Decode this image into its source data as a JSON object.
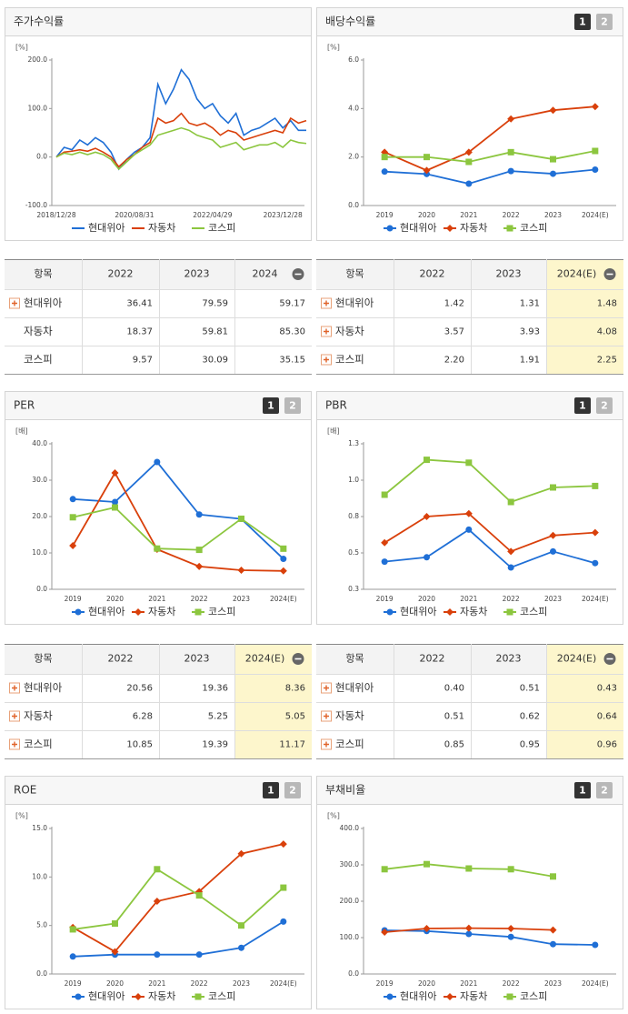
{
  "chart_data": [
    {
      "type": "line",
      "title": "주가수익률",
      "unit": "[%]",
      "categories": [
        "2018/12/28",
        null,
        null,
        null,
        null,
        null,
        null,
        null,
        null,
        null,
        "2020/08/31",
        null,
        null,
        null,
        null,
        null,
        null,
        null,
        null,
        null,
        "2022/04/29",
        null,
        null,
        null,
        null,
        null,
        null,
        null,
        null,
        "2023/12/28",
        null,
        null,
        null
      ],
      "ylim": [
        -100,
        200
      ],
      "yticks": [
        {
          "value": -100,
          "label": "-100.0"
        },
        {
          "value": 0,
          "label": "0.0"
        },
        {
          "value": 100,
          "label": "100.0"
        },
        {
          "value": 200,
          "label": "200.0"
        }
      ],
      "series": [
        {
          "name": "현대위아",
          "color": "#1f6fd6",
          "values": [
            0,
            20,
            15,
            35,
            25,
            40,
            30,
            10,
            -25,
            -5,
            10,
            20,
            40,
            150,
            110,
            140,
            180,
            160,
            120,
            100,
            110,
            85,
            70,
            90,
            45,
            55,
            60,
            70,
            80,
            60,
            75,
            55,
            55
          ]
        },
        {
          "name": "자동차",
          "color": "#d9400b",
          "values": [
            0,
            10,
            12,
            15,
            12,
            18,
            10,
            0,
            -20,
            -5,
            5,
            20,
            30,
            80,
            70,
            75,
            90,
            70,
            65,
            70,
            60,
            45,
            55,
            50,
            35,
            40,
            45,
            50,
            55,
            50,
            80,
            70,
            75
          ]
        },
        {
          "name": "코스피",
          "color": "#8cc63f",
          "values": [
            0,
            8,
            5,
            10,
            5,
            10,
            5,
            -5,
            -25,
            -10,
            5,
            15,
            25,
            45,
            50,
            55,
            60,
            55,
            45,
            40,
            35,
            20,
            25,
            30,
            15,
            20,
            25,
            25,
            30,
            20,
            35,
            30,
            28
          ]
        }
      ]
    },
    {
      "type": "line",
      "title": "배당수익률",
      "unit": "[%]",
      "pager": [
        "1",
        "2"
      ],
      "categories": [
        "2019",
        "2020",
        "2021",
        "2022",
        "2023",
        "2024(E)"
      ],
      "ylim": [
        0,
        6
      ],
      "yticks": [
        {
          "value": 0,
          "label": "0.0"
        },
        {
          "value": 2,
          "label": "2.0"
        },
        {
          "value": 4,
          "label": "4.0"
        },
        {
          "value": 6,
          "label": "6.0"
        }
      ],
      "series": [
        {
          "name": "현대위아",
          "color": "#1f6fd6",
          "marker": "circle",
          "values": [
            1.4,
            1.3,
            0.9,
            1.42,
            1.31,
            1.48
          ]
        },
        {
          "name": "자동차",
          "color": "#d9400b",
          "marker": "diamond",
          "values": [
            2.2,
            1.45,
            2.2,
            3.57,
            3.93,
            4.08
          ]
        },
        {
          "name": "코스피",
          "color": "#8cc63f",
          "marker": "square",
          "values": [
            2.0,
            2.0,
            1.8,
            2.2,
            1.91,
            2.25
          ]
        }
      ]
    },
    {
      "type": "line",
      "title": "PER",
      "unit": "[배]",
      "pager": [
        "1",
        "2"
      ],
      "categories": [
        "2019",
        "2020",
        "2021",
        "2022",
        "2023",
        "2024(E)"
      ],
      "ylim": [
        0,
        40
      ],
      "yticks": [
        {
          "value": 0,
          "label": "0.0"
        },
        {
          "value": 10,
          "label": "10.0"
        },
        {
          "value": 20,
          "label": "20.0"
        },
        {
          "value": 30,
          "label": "30.0"
        },
        {
          "value": 40,
          "label": "40.0"
        }
      ],
      "series": [
        {
          "name": "현대위아",
          "color": "#1f6fd6",
          "marker": "circle",
          "values": [
            24.8,
            24.0,
            35.0,
            20.56,
            19.36,
            8.36
          ]
        },
        {
          "name": "자동차",
          "color": "#d9400b",
          "marker": "diamond",
          "values": [
            12.0,
            32.0,
            11.0,
            6.28,
            5.25,
            5.05
          ]
        },
        {
          "name": "코스피",
          "color": "#8cc63f",
          "marker": "square",
          "values": [
            19.8,
            22.5,
            11.2,
            10.85,
            19.39,
            11.17
          ]
        }
      ]
    },
    {
      "type": "line",
      "title": "PBR",
      "unit": "[배]",
      "pager": [
        "1",
        "2"
      ],
      "categories": [
        "2019",
        "2020",
        "2021",
        "2022",
        "2023",
        "2024(E)"
      ],
      "ylim": [
        0.25,
        1.25
      ],
      "yticks": [
        {
          "value": 0.25,
          "label": "0.3"
        },
        {
          "value": 0.5,
          "label": "0.5"
        },
        {
          "value": 0.75,
          "label": "0.8"
        },
        {
          "value": 1.0,
          "label": "1.0"
        },
        {
          "value": 1.25,
          "label": "1.3"
        }
      ],
      "series": [
        {
          "name": "현대위아",
          "color": "#1f6fd6",
          "marker": "circle",
          "values": [
            0.44,
            0.47,
            0.66,
            0.4,
            0.51,
            0.43
          ]
        },
        {
          "name": "자동차",
          "color": "#d9400b",
          "marker": "diamond",
          "values": [
            0.57,
            0.75,
            0.77,
            0.51,
            0.62,
            0.64
          ]
        },
        {
          "name": "코스피",
          "color": "#8cc63f",
          "marker": "square",
          "values": [
            0.9,
            1.14,
            1.12,
            0.85,
            0.95,
            0.96
          ]
        }
      ]
    },
    {
      "type": "line",
      "title": "ROE",
      "unit": "[%]",
      "pager": [
        "1",
        "2"
      ],
      "categories": [
        "2019",
        "2020",
        "2021",
        "2022",
        "2023",
        "2024(E)"
      ],
      "ylim": [
        0,
        15
      ],
      "yticks": [
        {
          "value": 0,
          "label": "0.0"
        },
        {
          "value": 5,
          "label": "5.0"
        },
        {
          "value": 10,
          "label": "10.0"
        },
        {
          "value": 15,
          "label": "15.0"
        }
      ],
      "series": [
        {
          "name": "현대위아",
          "color": "#1f6fd6",
          "marker": "circle",
          "values": [
            1.8,
            2.0,
            2.0,
            2.0,
            2.7,
            5.4
          ]
        },
        {
          "name": "자동차",
          "color": "#d9400b",
          "marker": "diamond",
          "values": [
            4.8,
            2.3,
            7.5,
            8.5,
            12.4,
            13.4
          ]
        },
        {
          "name": "코스피",
          "color": "#8cc63f",
          "marker": "square",
          "values": [
            4.6,
            5.2,
            10.8,
            8.1,
            5.0,
            8.9
          ]
        }
      ]
    },
    {
      "type": "line",
      "title": "부채비율",
      "unit": "[%]",
      "pager": [
        "1",
        "2"
      ],
      "categories": [
        "2019",
        "2020",
        "2021",
        "2022",
        "2023",
        "2024(E)"
      ],
      "ylim": [
        0,
        400
      ],
      "yticks": [
        {
          "value": 0,
          "label": "0.0"
        },
        {
          "value": 100,
          "label": "100.0"
        },
        {
          "value": 200,
          "label": "200.0"
        },
        {
          "value": 300,
          "label": "300.0"
        },
        {
          "value": 400,
          "label": "400.0"
        }
      ],
      "series": [
        {
          "name": "현대위아",
          "color": "#1f6fd6",
          "marker": "circle",
          "values": [
            120,
            118,
            110,
            102,
            82,
            80
          ]
        },
        {
          "name": "자동차",
          "color": "#d9400b",
          "marker": "diamond",
          "values": [
            115,
            125,
            126,
            125,
            121,
            null
          ]
        },
        {
          "name": "코스피",
          "color": "#8cc63f",
          "marker": "square",
          "values": [
            288,
            302,
            290,
            288,
            268,
            null
          ]
        }
      ]
    }
  ],
  "tables": [
    {
      "header": [
        "항목",
        "2022",
        "2023",
        "2024"
      ],
      "rows": [
        [
          "현대위아",
          "36.41",
          "79.59",
          "59.17"
        ],
        [
          "자동차",
          "18.37",
          "59.81",
          "85.30"
        ],
        [
          "코스피",
          "9.57",
          "30.09",
          "35.15"
        ]
      ]
    },
    {
      "header": [
        "항목",
        "2022",
        "2023",
        "2024(E)"
      ],
      "highlight": true,
      "rows": [
        [
          "현대위아",
          "1.42",
          "1.31",
          "1.48"
        ],
        [
          "자동차",
          "3.57",
          "3.93",
          "4.08"
        ],
        [
          "코스피",
          "2.20",
          "1.91",
          "2.25"
        ]
      ]
    },
    {
      "header": [
        "항목",
        "2022",
        "2023",
        "2024(E)"
      ],
      "highlight": true,
      "rows": [
        [
          "현대위아",
          "20.56",
          "19.36",
          "8.36"
        ],
        [
          "자동차",
          "6.28",
          "5.25",
          "5.05"
        ],
        [
          "코스피",
          "10.85",
          "19.39",
          "11.17"
        ]
      ]
    },
    {
      "header": [
        "항목",
        "2022",
        "2023",
        "2024(E)"
      ],
      "highlight": true,
      "rows": [
        [
          "현대위아",
          "0.40",
          "0.51",
          "0.43"
        ],
        [
          "자동차",
          "0.51",
          "0.62",
          "0.64"
        ],
        [
          "코스피",
          "0.85",
          "0.95",
          "0.96"
        ]
      ]
    }
  ]
}
